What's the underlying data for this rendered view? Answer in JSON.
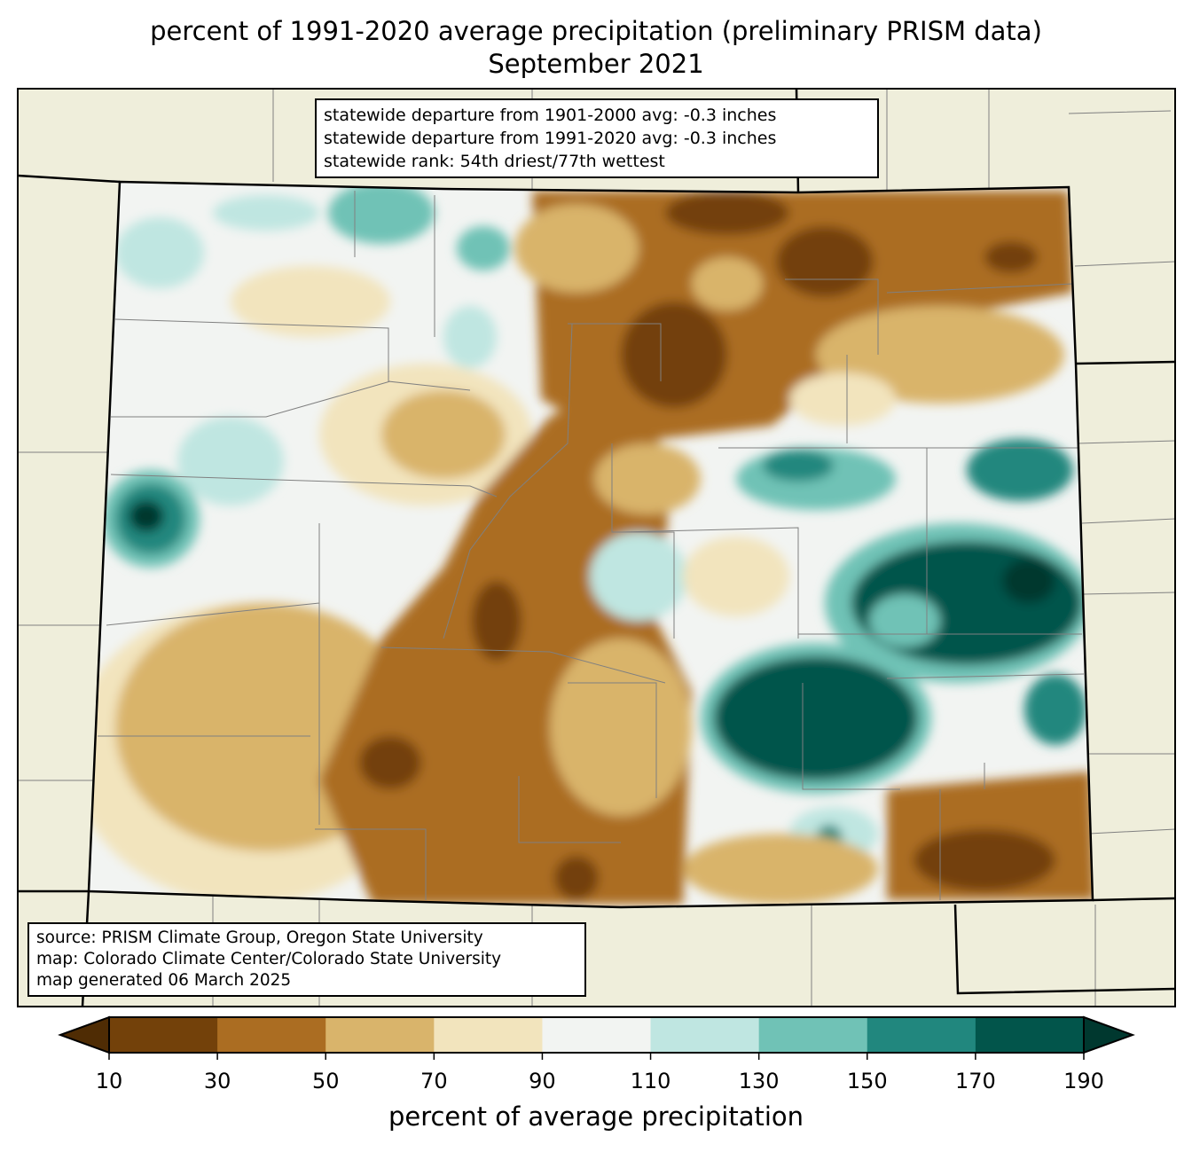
{
  "title": {
    "line1": "percent of 1991-2020 average precipitation (preliminary PRISM data)",
    "line2": "September 2021"
  },
  "stats_box": {
    "lines": [
      "statewide departure from 1901-2000 avg: -0.3 inches",
      "statewide departure from 1991-2020 avg: -0.3 inches",
      "statewide rank: 54th driest/77th wettest"
    ]
  },
  "source_box": {
    "lines": [
      "source: PRISM Climate Group, Oregon State University",
      "map: Colorado Climate Center/Colorado State University",
      "map generated 06 March 2025"
    ]
  },
  "colorbar": {
    "label": "percent of average precipitation",
    "ticks": [
      "10",
      "30",
      "50",
      "70",
      "90",
      "110",
      "130",
      "150",
      "170",
      "190"
    ],
    "under_color": "#4f2c04",
    "over_color": "#00382f",
    "colors": [
      "#73410a",
      "#ab6d22",
      "#d9b46b",
      "#f2e4bd",
      "#f2f4f2",
      "#bfe6e1",
      "#70c2b6",
      "#21877e",
      "#02554b"
    ]
  },
  "colors": {
    "land": "#efeedb",
    "border": "#000000",
    "county": "#808080"
  }
}
